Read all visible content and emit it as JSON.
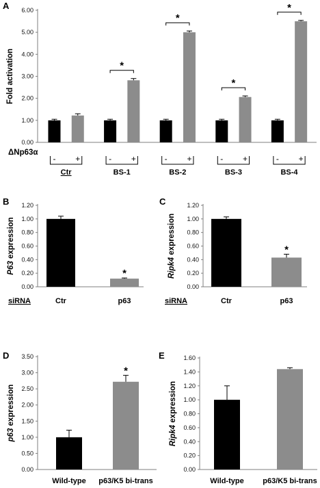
{
  "colors": {
    "black_bar": "#000000",
    "gray_bar": "#8c8c8c",
    "axis": "#7f7f7f"
  },
  "chart_data": [
    {
      "panel": "A",
      "type": "bar",
      "ylabel": "Fold activation",
      "ylim": [
        0,
        6
      ],
      "yticks": [
        "0.00",
        "1.00",
        "2.00",
        "3.00",
        "4.00",
        "5.00",
        "6.00"
      ],
      "x_header": "ΔNp63α",
      "groups": [
        "Ctr",
        "BS-1",
        "BS-2",
        "BS-3",
        "BS-4"
      ],
      "sign_labels": [
        "-",
        "+"
      ],
      "series": [
        {
          "values": [
            1.0,
            1.0,
            1.0,
            1.0,
            1.0
          ],
          "errors": [
            0.05,
            0.05,
            0.05,
            0.05,
            0.05
          ]
        },
        {
          "values": [
            1.22,
            2.82,
            5.0,
            2.06,
            5.5
          ],
          "errors": [
            0.08,
            0.08,
            0.06,
            0.05,
            0.04
          ]
        }
      ],
      "significance": [
        false,
        true,
        true,
        true,
        true
      ],
      "sig_symbol": "*"
    },
    {
      "panel": "B",
      "type": "bar",
      "ylabel": "P63 expression",
      "ylim": [
        0,
        1.2
      ],
      "yticks": [
        "0.00",
        "0.20",
        "0.40",
        "0.60",
        "0.80",
        "1.00",
        "1.20"
      ],
      "row_label": "siRNA",
      "categories": [
        "Ctr",
        "p63"
      ],
      "values": [
        1.0,
        0.12
      ],
      "errors": [
        0.04,
        0.01
      ],
      "significance": [
        false,
        true
      ],
      "sig_symbol": "*"
    },
    {
      "panel": "C",
      "type": "bar",
      "ylabel": "Ripk4 expression",
      "ylim": [
        0,
        1.2
      ],
      "yticks": [
        "0.00",
        "0.20",
        "0.40",
        "0.60",
        "0.80",
        "1.00",
        "1.20"
      ],
      "row_label": "siRNA",
      "categories": [
        "Ctr",
        "p63"
      ],
      "values": [
        1.0,
        0.43
      ],
      "errors": [
        0.03,
        0.05
      ],
      "significance": [
        false,
        true
      ],
      "sig_symbol": "*"
    },
    {
      "panel": "D",
      "type": "bar",
      "ylabel": "p63 expression",
      "ylim": [
        0,
        3.5
      ],
      "yticks": [
        "0.00",
        "0.50",
        "1.00",
        "1.50",
        "2.00",
        "2.50",
        "3.00",
        "3.50"
      ],
      "categories": [
        "Wild-type",
        "p63/K5 bi-trans"
      ],
      "values": [
        1.0,
        2.72
      ],
      "errors": [
        0.22,
        0.2
      ],
      "significance": [
        false,
        true
      ],
      "sig_symbol": "*"
    },
    {
      "panel": "E",
      "type": "bar",
      "ylabel": "Ripk4 expression",
      "ylim": [
        0,
        1.6
      ],
      "yticks": [
        "0.00",
        "0.20",
        "0.40",
        "0.60",
        "0.80",
        "1.00",
        "1.20",
        "1.40",
        "1.60"
      ],
      "categories": [
        "Wild-type",
        "p63/K5 bi-trans"
      ],
      "values": [
        1.0,
        1.44
      ],
      "errors": [
        0.2,
        0.02
      ],
      "significance": [
        false,
        false
      ],
      "sig_symbol": "*"
    }
  ]
}
